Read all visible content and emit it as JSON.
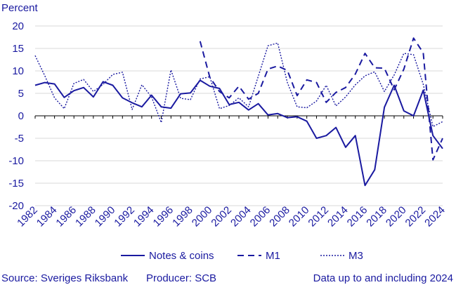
{
  "chart_data": {
    "type": "line",
    "ylabel": "Percent",
    "xlabel": "",
    "ylim": [
      -20,
      20
    ],
    "yticks": [
      20,
      15,
      10,
      5,
      0,
      -5,
      -10,
      -15,
      -20
    ],
    "xlim": [
      1982,
      2024
    ],
    "xticks": [
      1982,
      1984,
      1986,
      1988,
      1990,
      1992,
      1994,
      1996,
      1998,
      2000,
      2002,
      2004,
      2006,
      2008,
      2010,
      2012,
      2014,
      2016,
      2018,
      2020,
      2022,
      2024
    ],
    "x": [
      1982,
      1983,
      1984,
      1985,
      1986,
      1987,
      1988,
      1989,
      1990,
      1991,
      1992,
      1993,
      1994,
      1995,
      1996,
      1997,
      1998,
      1999,
      2000,
      2001,
      2002,
      2003,
      2004,
      2005,
      2006,
      2007,
      2008,
      2009,
      2010,
      2011,
      2012,
      2013,
      2014,
      2015,
      2016,
      2017,
      2018,
      2019,
      2020,
      2021,
      2022,
      2023,
      2024
    ],
    "series": [
      {
        "name": "Notes & coins",
        "style": "solid",
        "values": [
          6.8,
          7.4,
          7.1,
          4.1,
          5.6,
          6.3,
          4.2,
          7.6,
          6.8,
          4.0,
          2.9,
          2.0,
          4.6,
          2.0,
          1.7,
          4.9,
          5.1,
          7.9,
          6.6,
          6.1,
          2.5,
          3.0,
          1.3,
          2.7,
          0.2,
          0.5,
          -0.4,
          -0.2,
          -1.2,
          -5.0,
          -4.4,
          -2.6,
          -7.0,
          -4.4,
          -15.5,
          -12.0,
          1.9,
          6.8,
          1.1,
          0.0,
          5.7,
          -4.4,
          -7.3
        ]
      },
      {
        "name": "M1",
        "style": "dashed",
        "values": [
          null,
          null,
          null,
          null,
          null,
          null,
          null,
          null,
          null,
          null,
          null,
          null,
          null,
          null,
          null,
          null,
          null,
          16.6,
          8.6,
          5.4,
          4.0,
          6.6,
          3.7,
          5.0,
          10.4,
          11.1,
          10.1,
          4.5,
          8.0,
          7.4,
          3.0,
          5.2,
          6.3,
          9.3,
          13.9,
          10.7,
          10.6,
          5.8,
          10.4,
          17.3,
          14.0,
          -9.8,
          -5.0
        ]
      },
      {
        "name": "M3",
        "style": "dotted",
        "values": [
          13.4,
          8.9,
          4.0,
          1.6,
          7.2,
          8.1,
          5.4,
          7.0,
          9.2,
          9.7,
          1.4,
          6.9,
          4.2,
          -1.5,
          10.2,
          3.9,
          3.6,
          8.2,
          8.7,
          1.6,
          2.3,
          4.0,
          2.0,
          8.8,
          15.6,
          16.2,
          7.4,
          2.0,
          1.8,
          3.3,
          6.8,
          2.2,
          4.2,
          6.9,
          8.9,
          9.8,
          5.4,
          9.1,
          13.9,
          13.6,
          7.0,
          -2.4,
          -1.3
        ]
      }
    ]
  },
  "colors": {
    "series": "#1a1aa0",
    "axis_text": "#1a1aa0",
    "grid": "#d9d9d9",
    "zero_line": "#000000"
  },
  "footer": {
    "source": "Source: Sveriges Riksbank",
    "producer": "Producer: SCB",
    "note": "Data up to and including 2024"
  }
}
